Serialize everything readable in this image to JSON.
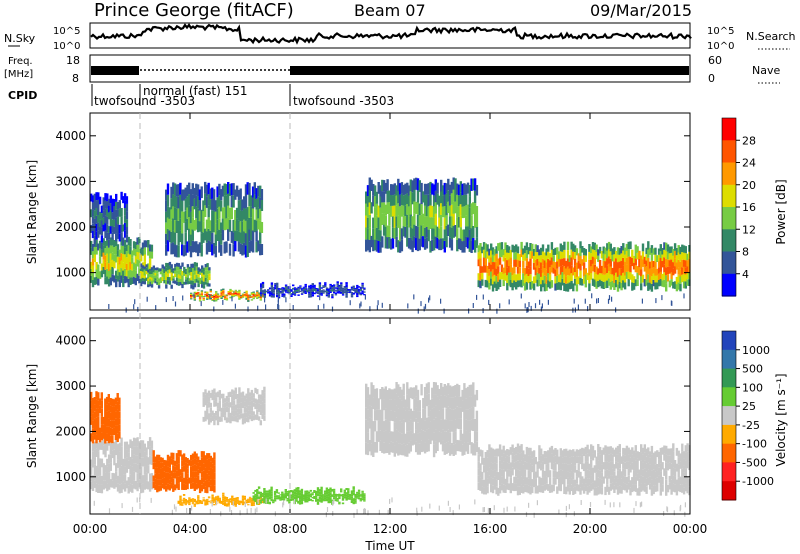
{
  "header": {
    "station": "Prince George (fitACF)",
    "beam": "Beam 07",
    "date": "09/Mar/2015"
  },
  "noise_panel": {
    "left_label": "N.Sky",
    "right_label": "N.Search",
    "y_ticks": [
      "10^5",
      "10^0"
    ]
  },
  "freq_panel": {
    "left_label_top": "Freq.",
    "left_label_bottom": "[MHz]",
    "y_ticks_left": [
      "18",
      "8"
    ],
    "y_ticks_right": [
      "60",
      "0"
    ],
    "right_label": "Nave"
  },
  "cpid_panel": {
    "label": "CPID",
    "segments": [
      {
        "label": "twofsound -3503",
        "start_hour": 0
      },
      {
        "label": "normal (fast) 151",
        "start_hour": 2
      },
      {
        "label": "twofsound -3503",
        "start_hour": 8
      }
    ]
  },
  "chart_data": [
    {
      "type": "heatmap",
      "name": "Power",
      "ylabel": "Slant Range [km]",
      "ylim": [
        180,
        4500
      ],
      "y_ticks": [
        1000,
        2000,
        3000,
        4000
      ],
      "colorbar_label": "Power [dB]",
      "colorbar_ticks": [
        "28",
        "24",
        "20",
        "16",
        "12",
        "8",
        "4"
      ],
      "colorbar_colors": [
        "#ff0000",
        "#ff5500",
        "#ff9900",
        "#dddd00",
        "#77cc44",
        "#338866",
        "#335599",
        "#0000ff"
      ],
      "echo_regions": [
        {
          "start_hour": 0.0,
          "end_hour": 2.5,
          "range_low_km": 750,
          "range_high_km": 1700,
          "level_db": 18
        },
        {
          "start_hour": 0.0,
          "end_hour": 1.5,
          "range_low_km": 1700,
          "range_high_km": 2700,
          "level_db": 8
        },
        {
          "start_hour": 2.0,
          "end_hour": 4.8,
          "range_low_km": 700,
          "range_high_km": 1150,
          "level_db": 16
        },
        {
          "start_hour": 3.0,
          "end_hour": 6.9,
          "range_low_km": 1400,
          "range_high_km": 2900,
          "level_db": 12
        },
        {
          "start_hour": 4.0,
          "end_hour": 7.0,
          "range_low_km": 420,
          "range_high_km": 560,
          "level_db": 26
        },
        {
          "start_hour": 6.8,
          "end_hour": 11.0,
          "range_low_km": 500,
          "range_high_km": 720,
          "level_db": 6
        },
        {
          "start_hour": 11.0,
          "end_hour": 15.5,
          "range_low_km": 1500,
          "range_high_km": 3000,
          "level_db": 14
        },
        {
          "start_hour": 15.5,
          "end_hour": 24.0,
          "range_low_km": 650,
          "range_high_km": 1600,
          "level_db": 24
        }
      ]
    },
    {
      "type": "heatmap",
      "name": "Velocity",
      "ylabel": "Slant Range [km]",
      "xlabel": "Time UT",
      "ylim": [
        180,
        4500
      ],
      "y_ticks": [
        1000,
        2000,
        3000,
        4000
      ],
      "x_ticks": [
        "00:00",
        "04:00",
        "08:00",
        "12:00",
        "16:00",
        "20:00",
        "00:00"
      ],
      "xlim_hours": [
        0,
        24
      ],
      "colorbar_label": "Velocity [m s⁻¹]",
      "colorbar_ticks": [
        "1000",
        "500",
        "100",
        "25",
        "-25",
        "-100",
        "-500",
        "-1000"
      ],
      "colorbar_colors": [
        "#2244bb",
        "#3377aa",
        "#339955",
        "#66cc33",
        "#c8c8c8",
        "#ffaa00",
        "#ff6600",
        "#ff2222",
        "#dd0000"
      ],
      "echo_regions": [
        {
          "start_hour": 0.0,
          "end_hour": 2.5,
          "range_low_km": 700,
          "range_high_km": 1800,
          "velocity": 0
        },
        {
          "start_hour": 0.0,
          "end_hour": 1.2,
          "range_low_km": 1800,
          "range_high_km": 2800,
          "velocity": -300
        },
        {
          "start_hour": 2.5,
          "end_hour": 5.0,
          "range_low_km": 700,
          "range_high_km": 1500,
          "velocity": -400
        },
        {
          "start_hour": 4.5,
          "end_hour": 7.0,
          "range_low_km": 2200,
          "range_high_km": 2900,
          "velocity": 0
        },
        {
          "start_hour": 3.5,
          "end_hour": 7.0,
          "range_low_km": 400,
          "range_high_km": 560,
          "velocity": -60
        },
        {
          "start_hour": 6.5,
          "end_hour": 11.0,
          "range_low_km": 450,
          "range_high_km": 700,
          "velocity": 80
        },
        {
          "start_hour": 11.0,
          "end_hour": 15.5,
          "range_low_km": 1500,
          "range_high_km": 3000,
          "velocity": 0
        },
        {
          "start_hour": 15.5,
          "end_hour": 24.0,
          "range_low_km": 650,
          "range_high_km": 1650,
          "velocity": 0
        }
      ]
    }
  ]
}
